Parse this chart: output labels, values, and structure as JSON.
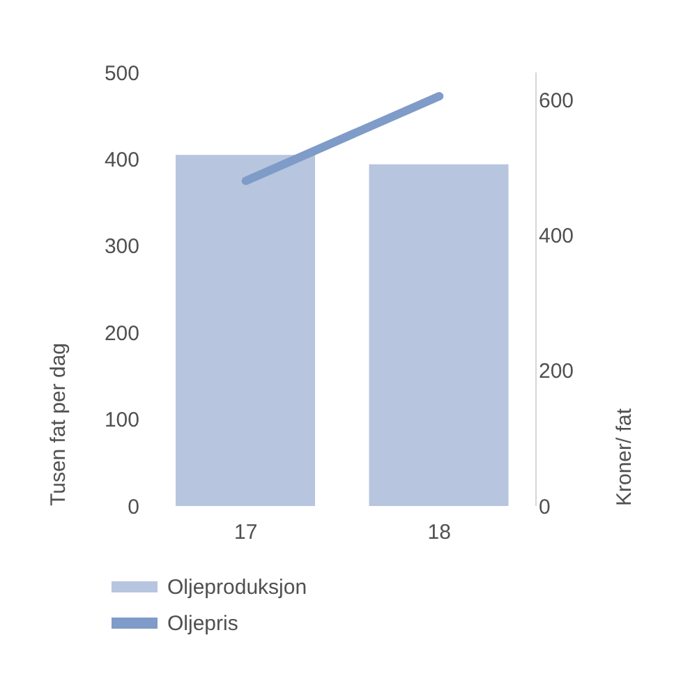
{
  "chart_data": {
    "type": "bar",
    "categories": [
      "17",
      "18"
    ],
    "ylabel": "Tusen fat per dag",
    "y2label": "Kroner/ fat",
    "ylim": [
      0,
      500
    ],
    "yticks": [
      0,
      100,
      200,
      300,
      400,
      500
    ],
    "y2lim": [
      0,
      640
    ],
    "y2ticks": [
      0,
      200,
      400,
      600
    ],
    "series": [
      {
        "name": "Oljeproduksjon",
        "color": "#b7c5df",
        "values": [
          405,
          394
        ]
      },
      {
        "name": "Oljepris",
        "type": "line",
        "axis": "y2",
        "color": "#7f9bc8",
        "values": [
          480,
          605
        ]
      }
    ],
    "legend": "bottom left"
  }
}
